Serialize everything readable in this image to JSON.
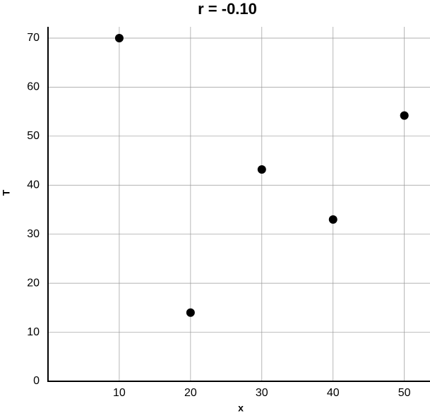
{
  "chart_data": {
    "type": "scatter",
    "title": "r = -0.10",
    "x_label": "x",
    "y_label": "T",
    "x": [
      10,
      20,
      30,
      40,
      50
    ],
    "values": [
      70,
      14,
      43.2,
      33,
      54.2
    ],
    "color": "#000000",
    "xlim": [
      0,
      53.6
    ],
    "ylim": [
      0,
      72.3
    ],
    "xticks": [
      10,
      20,
      30,
      40,
      50
    ],
    "yticks": [
      0,
      10,
      20,
      30,
      40,
      50,
      60,
      70
    ],
    "grid": true
  }
}
